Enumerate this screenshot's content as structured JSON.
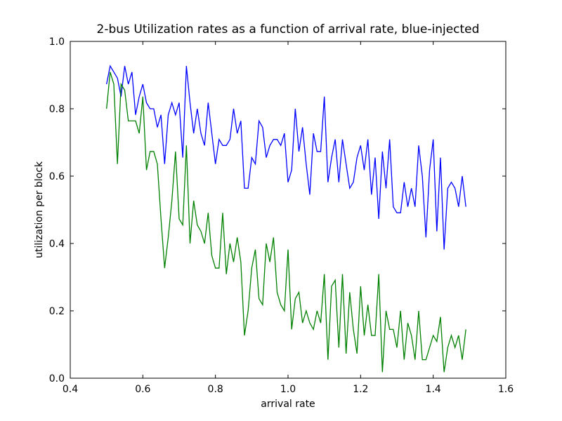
{
  "chart_data": {
    "type": "line",
    "title": "2-bus Utilization rates as a function of arrival rate, blue-injected",
    "x_label": "arrival rate",
    "y_label": "utilization per block",
    "x": [
      0.5,
      0.51,
      0.52,
      0.53,
      0.54,
      0.55,
      0.56,
      0.57,
      0.58,
      0.59,
      0.6,
      0.61,
      0.62,
      0.63,
      0.64,
      0.65,
      0.66,
      0.67,
      0.68,
      0.69,
      0.7,
      0.71,
      0.72,
      0.73,
      0.74,
      0.75,
      0.76,
      0.77,
      0.78,
      0.79,
      0.8,
      0.81,
      0.82,
      0.83,
      0.84,
      0.85,
      0.86,
      0.87,
      0.88,
      0.89,
      0.9,
      0.91,
      0.92,
      0.93,
      0.94,
      0.95,
      0.96,
      0.97,
      0.98,
      0.99,
      1.0,
      1.01,
      1.02,
      1.03,
      1.04,
      1.05,
      1.06,
      1.07,
      1.08,
      1.09,
      1.1,
      1.11,
      1.12,
      1.13,
      1.14,
      1.15,
      1.16,
      1.17,
      1.18,
      1.19,
      1.2,
      1.21,
      1.22,
      1.23,
      1.24,
      1.25,
      1.26,
      1.27,
      1.28,
      1.29,
      1.3,
      1.31,
      1.32,
      1.33,
      1.34,
      1.35,
      1.36,
      1.37,
      1.38,
      1.39,
      1.4,
      1.41,
      1.42,
      1.43,
      1.44,
      1.45,
      1.46,
      1.47,
      1.48,
      1.49
    ],
    "series": [
      {
        "color": "#0000ff",
        "values": [
          0.873,
          0.927,
          0.909,
          0.891,
          0.836,
          0.927,
          0.873,
          0.909,
          0.782,
          0.836,
          0.873,
          0.818,
          0.8,
          0.8,
          0.745,
          0.782,
          0.636,
          0.782,
          0.818,
          0.782,
          0.818,
          0.655,
          0.927,
          0.818,
          0.727,
          0.8,
          0.727,
          0.691,
          0.818,
          0.727,
          0.636,
          0.709,
          0.691,
          0.691,
          0.709,
          0.8,
          0.727,
          0.764,
          0.564,
          0.564,
          0.655,
          0.636,
          0.764,
          0.745,
          0.655,
          0.691,
          0.709,
          0.709,
          0.691,
          0.727,
          0.582,
          0.618,
          0.8,
          0.673,
          0.745,
          0.636,
          0.545,
          0.727,
          0.673,
          0.673,
          0.836,
          0.582,
          0.655,
          0.709,
          0.582,
          0.709,
          0.636,
          0.564,
          0.582,
          0.655,
          0.691,
          0.618,
          0.709,
          0.545,
          0.655,
          0.473,
          0.673,
          0.564,
          0.709,
          0.509,
          0.491,
          0.491,
          0.582,
          0.509,
          0.564,
          0.509,
          0.691,
          0.6,
          0.418,
          0.618,
          0.709,
          0.436,
          0.655,
          0.382,
          0.564,
          0.582,
          0.564,
          0.509,
          0.6,
          0.509
        ]
      },
      {
        "color": "#008000",
        "values": [
          0.8,
          0.909,
          0.873,
          0.636,
          0.873,
          0.855,
          0.764,
          0.764,
          0.764,
          0.727,
          0.836,
          0.618,
          0.673,
          0.673,
          0.636,
          0.473,
          0.327,
          0.418,
          0.527,
          0.673,
          0.473,
          0.455,
          0.691,
          0.4,
          0.527,
          0.455,
          0.436,
          0.4,
          0.491,
          0.364,
          0.327,
          0.327,
          0.491,
          0.309,
          0.4,
          0.345,
          0.418,
          0.345,
          0.127,
          0.2,
          0.327,
          0.382,
          0.236,
          0.218,
          0.4,
          0.345,
          0.418,
          0.255,
          0.218,
          0.2,
          0.382,
          0.145,
          0.236,
          0.255,
          0.164,
          0.2,
          0.164,
          0.145,
          0.2,
          0.164,
          0.309,
          0.055,
          0.273,
          0.291,
          0.091,
          0.309,
          0.073,
          0.255,
          0.145,
          0.073,
          0.273,
          0.127,
          0.218,
          0.127,
          0.127,
          0.309,
          0.018,
          0.2,
          0.145,
          0.145,
          0.091,
          0.2,
          0.055,
          0.164,
          0.127,
          0.055,
          0.2,
          0.055,
          0.055,
          0.091,
          0.127,
          0.109,
          0.182,
          0.018,
          0.091,
          0.127,
          0.091,
          0.127,
          0.055,
          0.145
        ]
      }
    ],
    "xlim": [
      0.4,
      1.6
    ],
    "xticks": [
      0.4,
      0.6,
      0.8,
      {
        "value": 1,
        "label": "1.0"
      },
      1.2,
      1.4,
      1.6
    ],
    "ylim": [
      0,
      1
    ],
    "yticks": [
      {
        "value": 0,
        "label": "0.0"
      },
      0.2,
      0.4,
      0.6,
      0.8,
      {
        "value": 1,
        "label": "1.0"
      }
    ]
  }
}
